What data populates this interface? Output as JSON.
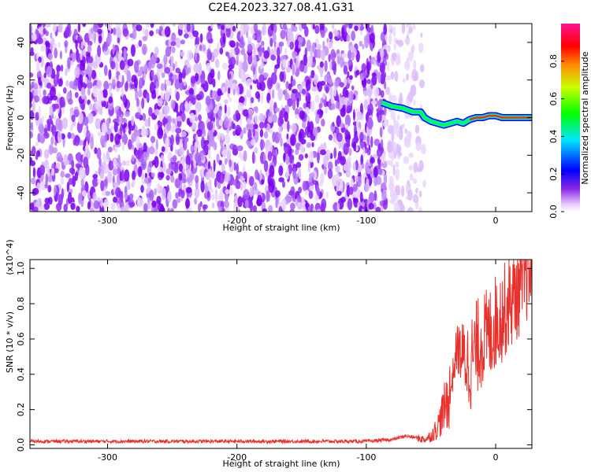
{
  "title": "C2E4.2023.327.08.41.G31",
  "chart_data": [
    {
      "type": "heatmap",
      "xlabel": "Height of straight line (km)",
      "ylabel": "Frequency (Hz)",
      "xlim": [
        -360,
        28
      ],
      "ylim": [
        -50,
        50
      ],
      "xticks": [
        -300,
        -200,
        -100,
        0
      ],
      "yticks": [
        -40,
        -20,
        0,
        20,
        40
      ],
      "xtick_labels": [
        "-300",
        "-200",
        "-100",
        "0"
      ],
      "ytick_labels": [
        "-40",
        "-20",
        "0",
        "20",
        "40"
      ],
      "noise_region": {
        "x_start": -360,
        "x_end": -55,
        "dense_until": -85
      },
      "ridge": {
        "x": [
          -88,
          -80,
          -72,
          -64,
          -58,
          -55,
          -50,
          -45,
          -40,
          -35,
          -30,
          -25,
          -20,
          -15,
          -10,
          -5,
          0,
          5,
          10,
          20,
          28
        ],
        "freq": [
          8,
          6,
          5,
          3,
          3,
          0,
          -2,
          -3,
          -4,
          -3,
          -2,
          -3,
          -1,
          0,
          0,
          1,
          1,
          0,
          0,
          0,
          0
        ]
      },
      "colorbar": {
        "label": "Normalized spectral amplitude",
        "range": [
          0,
          1
        ],
        "ticks": [
          0.0,
          0.2,
          0.4,
          0.6,
          0.8
        ],
        "tick_labels": [
          "0.0",
          "0.2",
          "0.4",
          "0.6",
          "0.8"
        ]
      }
    },
    {
      "type": "line",
      "xlabel": "Height of straight line (km)",
      "ylabel": "SNR (10 * v/v)",
      "yscale_label": "(x10^4)",
      "xlim": [
        -360,
        28
      ],
      "ylim": [
        -0.02,
        1.05
      ],
      "xticks": [
        -300,
        -200,
        -100,
        0
      ],
      "yticks": [
        0.0,
        0.2,
        0.4,
        0.6,
        0.8,
        1.0
      ],
      "xtick_labels": [
        "-300",
        "-200",
        "-100",
        "0"
      ],
      "ytick_labels": [
        "0.0",
        "0.2",
        "0.4",
        "0.6",
        "0.8",
        "1.0"
      ],
      "series": [
        {
          "color": "#e8302c",
          "x": [
            -360,
            -300,
            -200,
            -100,
            -80,
            -70,
            -60,
            -55,
            -50,
            -45,
            -40,
            -35,
            -30,
            -25,
            -20,
            -15,
            -10,
            -5,
            0,
            5,
            10,
            15,
            20,
            25,
            28
          ],
          "y": [
            0.02,
            0.02,
            0.02,
            0.02,
            0.03,
            0.05,
            0.04,
            0.03,
            0.05,
            0.1,
            0.2,
            0.3,
            0.55,
            0.5,
            0.45,
            0.55,
            0.6,
            0.62,
            0.7,
            0.74,
            0.8,
            0.85,
            0.9,
            0.98,
            1.0
          ]
        }
      ]
    }
  ]
}
